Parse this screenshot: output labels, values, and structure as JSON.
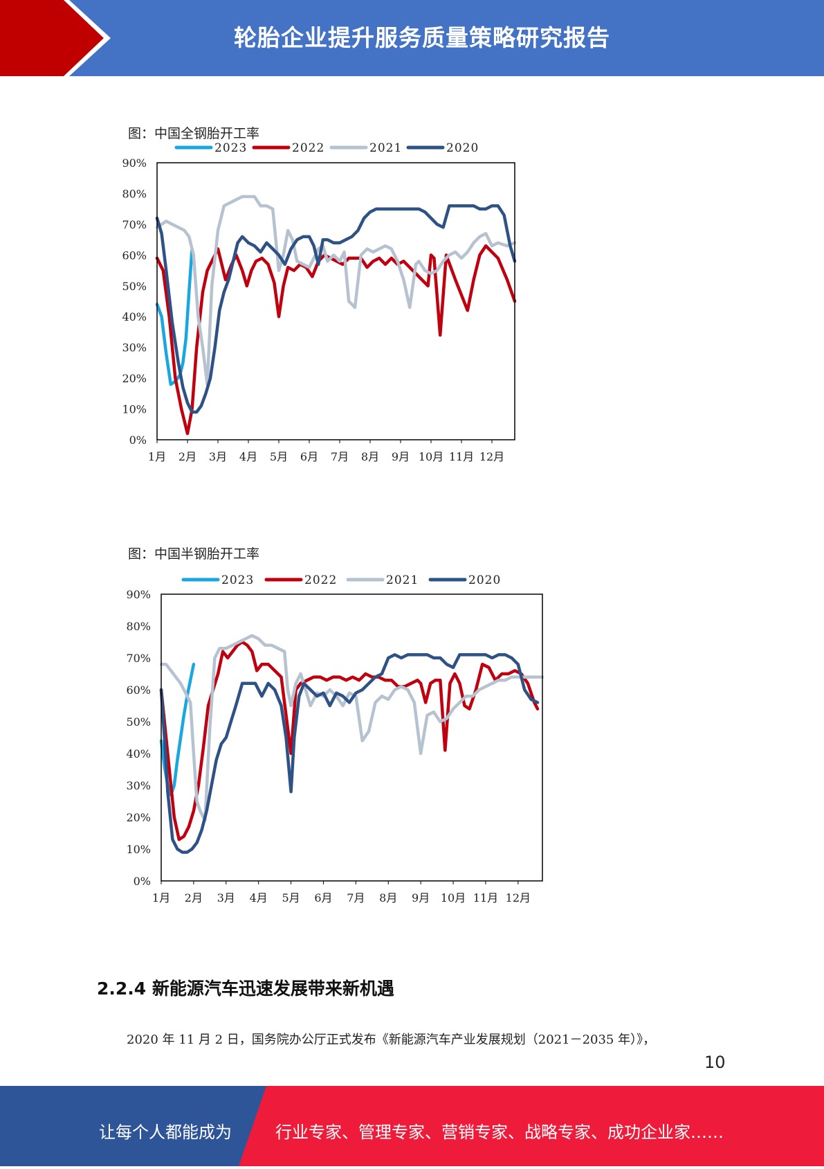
{
  "header": {
    "title": "轮胎企业提升服务质量策略研究报告"
  },
  "colors": {
    "header_blue": "#4472c4",
    "header_red": "#c00000",
    "footer_blue": "#2e5597",
    "footer_red": "#ee1c3a"
  },
  "figures": [
    {
      "caption": "图：中国全钢胎开工率"
    },
    {
      "caption": "图：中国半钢胎开工率"
    }
  ],
  "chart_data": [
    {
      "type": "line",
      "title": "图：中国全钢胎开工率",
      "x_ticks": [
        "1月",
        "2月",
        "3月",
        "4月",
        "5月",
        "6月",
        "7月",
        "8月",
        "9月",
        "10月",
        "11月",
        "12月"
      ],
      "y_ticks": [
        "0%",
        "10%",
        "20%",
        "30%",
        "40%",
        "50%",
        "60%",
        "70%",
        "80%",
        "90%"
      ],
      "xlim": [
        1,
        12.75
      ],
      "ylim": [
        0,
        90
      ],
      "legend_position": "top",
      "series": [
        {
          "name": "2023",
          "color": "#1aa7e0",
          "x": [
            1,
            1.15,
            1.3,
            1.45,
            1.6,
            1.75,
            1.85,
            1.95,
            2.05,
            2.15
          ],
          "y": [
            44,
            40,
            28,
            18,
            19,
            21,
            25,
            33,
            48,
            62
          ]
        },
        {
          "name": "2022",
          "color": "#c0000f",
          "x": [
            1,
            1.2,
            1.4,
            1.6,
            1.8,
            2,
            2.15,
            2.3,
            2.5,
            2.65,
            2.8,
            3,
            3.1,
            3.25,
            3.45,
            3.6,
            3.8,
            3.95,
            4.1,
            4.25,
            4.45,
            4.65,
            4.85,
            5,
            5.15,
            5.3,
            5.5,
            5.7,
            5.9,
            6.1,
            6.3,
            6.5,
            6.7,
            6.9,
            7.1,
            7.3,
            7.5,
            7.7,
            7.9,
            8.1,
            8.3,
            8.5,
            8.7,
            8.9,
            9.1,
            9.3,
            9.5,
            9.7,
            9.9,
            10,
            10.1,
            10.3,
            10.5,
            10.8,
            11,
            11.2,
            11.4,
            11.6,
            11.8,
            12,
            12.2,
            12.5,
            12.75
          ],
          "y": [
            59,
            55,
            40,
            20,
            10,
            2,
            10,
            30,
            48,
            55,
            58,
            62,
            58,
            52,
            57,
            60,
            55,
            50,
            55,
            58,
            59,
            57,
            51,
            40,
            50,
            56,
            55,
            57,
            56,
            53,
            58,
            60,
            59,
            58,
            57,
            59,
            59,
            59,
            56,
            58,
            59,
            57,
            59,
            57,
            58,
            56,
            54,
            52,
            50,
            60,
            59,
            34,
            60,
            52,
            47,
            42,
            52,
            60,
            63,
            61,
            59,
            52,
            45
          ]
        },
        {
          "name": "2021",
          "color": "#b7c2d1",
          "x": [
            1,
            1.15,
            1.3,
            1.5,
            1.7,
            1.9,
            2.05,
            2.2,
            2.35,
            2.5,
            2.65,
            2.8,
            3,
            3.2,
            3.4,
            3.6,
            3.8,
            4,
            4.2,
            4.4,
            4.6,
            4.8,
            4.9,
            5,
            5.15,
            5.3,
            5.45,
            5.6,
            5.8,
            6,
            6.15,
            6.3,
            6.45,
            6.6,
            6.8,
            7,
            7.15,
            7.3,
            7.5,
            7.7,
            7.9,
            8.1,
            8.3,
            8.5,
            8.7,
            8.9,
            9.1,
            9.3,
            9.5,
            9.6,
            9.8,
            10,
            10.2,
            10.4,
            10.6,
            10.8,
            11,
            11.2,
            11.4,
            11.6,
            11.8,
            12,
            12.2,
            12.5,
            12.75
          ],
          "y": [
            69,
            70,
            71,
            70,
            69,
            68,
            66,
            60,
            40,
            30,
            18,
            50,
            68,
            76,
            77,
            78,
            79,
            79,
            79,
            76,
            76,
            75,
            65,
            55,
            60,
            68,
            65,
            58,
            57,
            56,
            59,
            62,
            63,
            58,
            60,
            58,
            61,
            45,
            43,
            60,
            62,
            61,
            62,
            63,
            62,
            58,
            52,
            43,
            57,
            58,
            55,
            54,
            55,
            58,
            60,
            61,
            59,
            61,
            64,
            66,
            67,
            63,
            64,
            63,
            64
          ]
        },
        {
          "name": "2020",
          "color": "#2f5286",
          "x": [
            1,
            1.15,
            1.3,
            1.5,
            1.7,
            1.85,
            2,
            2.15,
            2.3,
            2.45,
            2.6,
            2.75,
            2.9,
            3.05,
            3.2,
            3.35,
            3.5,
            3.65,
            3.8,
            4,
            4.2,
            4.4,
            4.6,
            4.8,
            5,
            5.2,
            5.4,
            5.6,
            5.8,
            6,
            6.15,
            6.3,
            6.45,
            6.6,
            6.8,
            7,
            7.2,
            7.4,
            7.6,
            7.8,
            8,
            8.2,
            8.4,
            8.6,
            8.8,
            9,
            9.2,
            9.4,
            9.6,
            9.8,
            10,
            10.2,
            10.4,
            10.6,
            10.8,
            11,
            11.2,
            11.4,
            11.6,
            11.8,
            12,
            12.2,
            12.4,
            12.6,
            12.75
          ],
          "y": [
            72,
            67,
            55,
            38,
            25,
            17,
            12,
            9,
            9,
            11,
            15,
            20,
            30,
            42,
            48,
            52,
            58,
            64,
            66,
            64,
            63,
            61,
            64,
            62,
            60,
            57,
            62,
            65,
            66,
            66,
            63,
            57,
            65,
            65,
            64,
            64,
            65,
            66,
            68,
            72,
            74,
            75,
            75,
            75,
            75,
            75,
            75,
            75,
            75,
            74,
            72,
            70,
            69,
            76,
            76,
            76,
            76,
            76,
            75,
            75,
            76,
            76,
            73,
            63,
            58
          ]
        }
      ]
    },
    {
      "type": "line",
      "title": "图：中国半钢胎开工率",
      "x_ticks": [
        "1月",
        "2月",
        "3月",
        "4月",
        "5月",
        "6月",
        "7月",
        "8月",
        "9月",
        "10月",
        "11月",
        "12月"
      ],
      "y_ticks": [
        "0%",
        "10%",
        "20%",
        "30%",
        "40%",
        "50%",
        "60%",
        "70%",
        "80%",
        "90%"
      ],
      "xlim": [
        1,
        12.75
      ],
      "ylim": [
        0,
        90
      ],
      "legend_position": "top",
      "series": [
        {
          "name": "2023",
          "color": "#1aa7e0",
          "x": [
            1,
            1.1,
            1.2,
            1.3,
            1.4,
            1.5,
            1.6,
            1.7,
            1.8,
            1.9,
            2
          ],
          "y": [
            44,
            36,
            30,
            27,
            30,
            38,
            45,
            52,
            58,
            63,
            68
          ]
        },
        {
          "name": "2022",
          "color": "#c0000f",
          "x": [
            1,
            1.1,
            1.25,
            1.4,
            1.55,
            1.7,
            1.85,
            2,
            2.15,
            2.3,
            2.45,
            2.6,
            2.75,
            2.9,
            3.05,
            3.2,
            3.35,
            3.5,
            3.65,
            3.8,
            3.95,
            4.1,
            4.3,
            4.5,
            4.7,
            4.85,
            5,
            5.15,
            5.3,
            5.5,
            5.7,
            5.9,
            6.1,
            6.3,
            6.5,
            6.7,
            6.9,
            7.1,
            7.3,
            7.5,
            7.7,
            7.9,
            8.1,
            8.3,
            8.5,
            8.7,
            8.9,
            9,
            9.15,
            9.3,
            9.45,
            9.6,
            9.75,
            9.9,
            10.05,
            10.2,
            10.35,
            10.5,
            10.7,
            10.9,
            11.1,
            11.3,
            11.5,
            11.7,
            11.9,
            12.1,
            12.3,
            12.5,
            12.6
          ],
          "y": [
            60,
            50,
            35,
            20,
            13,
            14,
            17,
            22,
            30,
            42,
            55,
            60,
            65,
            72,
            70,
            72,
            74,
            75,
            74,
            72,
            66,
            68,
            68,
            66,
            64,
            52,
            40,
            60,
            62,
            63,
            64,
            64,
            63,
            64,
            64,
            63,
            64,
            63,
            65,
            64,
            64,
            63,
            63,
            61,
            61,
            62,
            63,
            62,
            56,
            62,
            63,
            63,
            41,
            62,
            65,
            62,
            55,
            54,
            60,
            68,
            67,
            63,
            65,
            65,
            66,
            65,
            62,
            56,
            54
          ]
        },
        {
          "name": "2021",
          "color": "#b7c2d1",
          "x": [
            1,
            1.15,
            1.3,
            1.45,
            1.6,
            1.75,
            1.9,
            2,
            2.1,
            2.2,
            2.35,
            2.5,
            2.65,
            2.8,
            3,
            3.2,
            3.4,
            3.6,
            3.8,
            4,
            4.2,
            4.4,
            4.6,
            4.8,
            4.9,
            5,
            5.15,
            5.3,
            5.45,
            5.6,
            5.8,
            6,
            6.2,
            6.4,
            6.6,
            6.8,
            7,
            7.2,
            7.4,
            7.6,
            7.8,
            8,
            8.2,
            8.4,
            8.6,
            8.8,
            9,
            9.2,
            9.4,
            9.6,
            9.8,
            10,
            10.2,
            10.4,
            10.6,
            10.8,
            11,
            11.2,
            11.4,
            11.6,
            11.8,
            12,
            12.2,
            12.4,
            12.6,
            12.75
          ],
          "y": [
            68,
            68,
            66,
            64,
            62,
            59,
            56,
            40,
            25,
            22,
            19,
            48,
            70,
            73,
            73,
            74,
            75,
            76,
            77,
            76,
            74,
            74,
            73,
            72,
            60,
            55,
            62,
            65,
            60,
            55,
            59,
            58,
            60,
            58,
            55,
            59,
            58,
            44,
            47,
            56,
            58,
            57,
            60,
            61,
            60,
            56,
            40,
            52,
            53,
            50,
            51,
            54,
            56,
            58,
            58,
            60,
            61,
            62,
            63,
            63,
            64,
            64,
            64,
            64,
            64,
            64
          ]
        },
        {
          "name": "2020",
          "color": "#2f5286",
          "x": [
            1,
            1.1,
            1.2,
            1.35,
            1.5,
            1.65,
            1.8,
            1.95,
            2.1,
            2.25,
            2.4,
            2.55,
            2.7,
            2.85,
            3,
            3.15,
            3.3,
            3.5,
            3.7,
            3.9,
            4.1,
            4.3,
            4.5,
            4.7,
            4.85,
            5,
            5.1,
            5.25,
            5.4,
            5.6,
            5.8,
            6,
            6.2,
            6.4,
            6.6,
            6.8,
            7,
            7.2,
            7.4,
            7.6,
            7.8,
            8,
            8.2,
            8.4,
            8.6,
            8.8,
            9,
            9.2,
            9.4,
            9.6,
            9.8,
            10,
            10.2,
            10.4,
            10.6,
            10.8,
            11,
            11.2,
            11.4,
            11.6,
            11.8,
            12,
            12.2,
            12.4,
            12.6
          ],
          "y": [
            60,
            45,
            28,
            13,
            10,
            9,
            9,
            10,
            12,
            16,
            22,
            30,
            38,
            43,
            45,
            50,
            55,
            62,
            62,
            62,
            58,
            62,
            60,
            55,
            45,
            28,
            45,
            58,
            62,
            60,
            58,
            59,
            55,
            59,
            58,
            56,
            59,
            60,
            62,
            64,
            65,
            70,
            71,
            70,
            71,
            71,
            71,
            71,
            70,
            70,
            68,
            67,
            71,
            71,
            71,
            71,
            71,
            70,
            71,
            71,
            70,
            68,
            60,
            57,
            56
          ]
        }
      ]
    }
  ],
  "section": {
    "heading": "2.2.4 新能源汽车迅速发展带来新机遇",
    "paragraph": "2020 年 11 月 2 日，国务院办公厅正式发布《新能源汽车产业发展规划（2021－2035 年）》，"
  },
  "page_number": "10",
  "footer": {
    "left_text": "让每个人都能成为",
    "right_text": "行业专家、管理专家、营销专家、战略专家、成功企业家……"
  }
}
